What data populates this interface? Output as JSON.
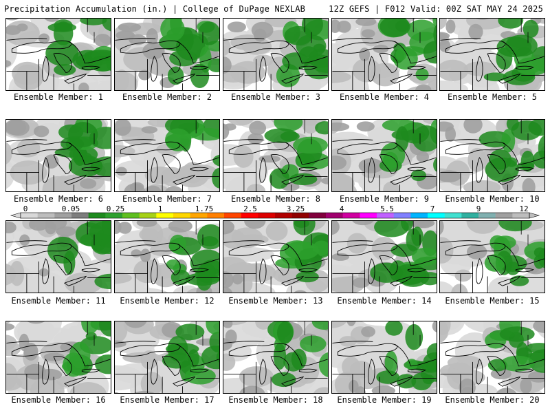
{
  "header": {
    "title_left": "Precipitation Accumulation (in.) | College of DuPage NEXLAB",
    "title_right": "12Z GEFS | F012 Valid: 00Z SAT MAY 24 2025"
  },
  "panels": [
    {
      "label": "Ensemble Member: 1",
      "intensity": 0.55
    },
    {
      "label": "Ensemble Member: 2",
      "intensity": 0.65
    },
    {
      "label": "Ensemble Member: 3",
      "intensity": 0.4
    },
    {
      "label": "Ensemble Member: 4",
      "intensity": 0.6
    },
    {
      "label": "Ensemble Member: 5",
      "intensity": 0.45
    },
    {
      "label": "Ensemble Member: 6",
      "intensity": 0.6
    },
    {
      "label": "Ensemble Member: 7",
      "intensity": 0.25
    },
    {
      "label": "Ensemble Member: 8",
      "intensity": 0.45
    },
    {
      "label": "Ensemble Member: 9",
      "intensity": 0.35
    },
    {
      "label": "Ensemble Member: 10",
      "intensity": 0.4
    },
    {
      "label": "Ensemble Member: 11",
      "intensity": 0.45
    },
    {
      "label": "Ensemble Member: 12",
      "intensity": 0.5
    },
    {
      "label": "Ensemble Member: 13",
      "intensity": 0.4
    },
    {
      "label": "Ensemble Member: 14",
      "intensity": 0.55
    },
    {
      "label": "Ensemble Member: 15",
      "intensity": 0.5
    },
    {
      "label": "Ensemble Member: 16",
      "intensity": 0.3
    },
    {
      "label": "Ensemble Member: 17",
      "intensity": 0.45
    },
    {
      "label": "Ensemble Member: 18",
      "intensity": 0.4
    },
    {
      "label": "Ensemble Member: 19",
      "intensity": 0.6
    },
    {
      "label": "Ensemble Member: 20",
      "intensity": 0.45
    }
  ],
  "colorbar": {
    "labels": [
      "0",
      "0.05",
      "0.25",
      "1",
      "1.75",
      "2.5",
      "3.25",
      "4",
      "5.5",
      "7",
      "9",
      "12"
    ],
    "colors": [
      "#d9d9d9",
      "#bdbdbd",
      "#a0a0a0",
      "#7d7d7d",
      "#1d8a1d",
      "#2da02d",
      "#5fbf1f",
      "#a6d116",
      "#ffff00",
      "#ffd700",
      "#ffa500",
      "#ff7f00",
      "#ff4500",
      "#ff0000",
      "#dc0000",
      "#b00000",
      "#900000",
      "#80003c",
      "#a0006e",
      "#d000a0",
      "#ff00ff",
      "#c060ff",
      "#8080ff",
      "#00b4ff",
      "#00ffff",
      "#40e0d0",
      "#30b0a0",
      "#80b0b0",
      "#a0a0a0",
      "#bdbdbd"
    ]
  }
}
